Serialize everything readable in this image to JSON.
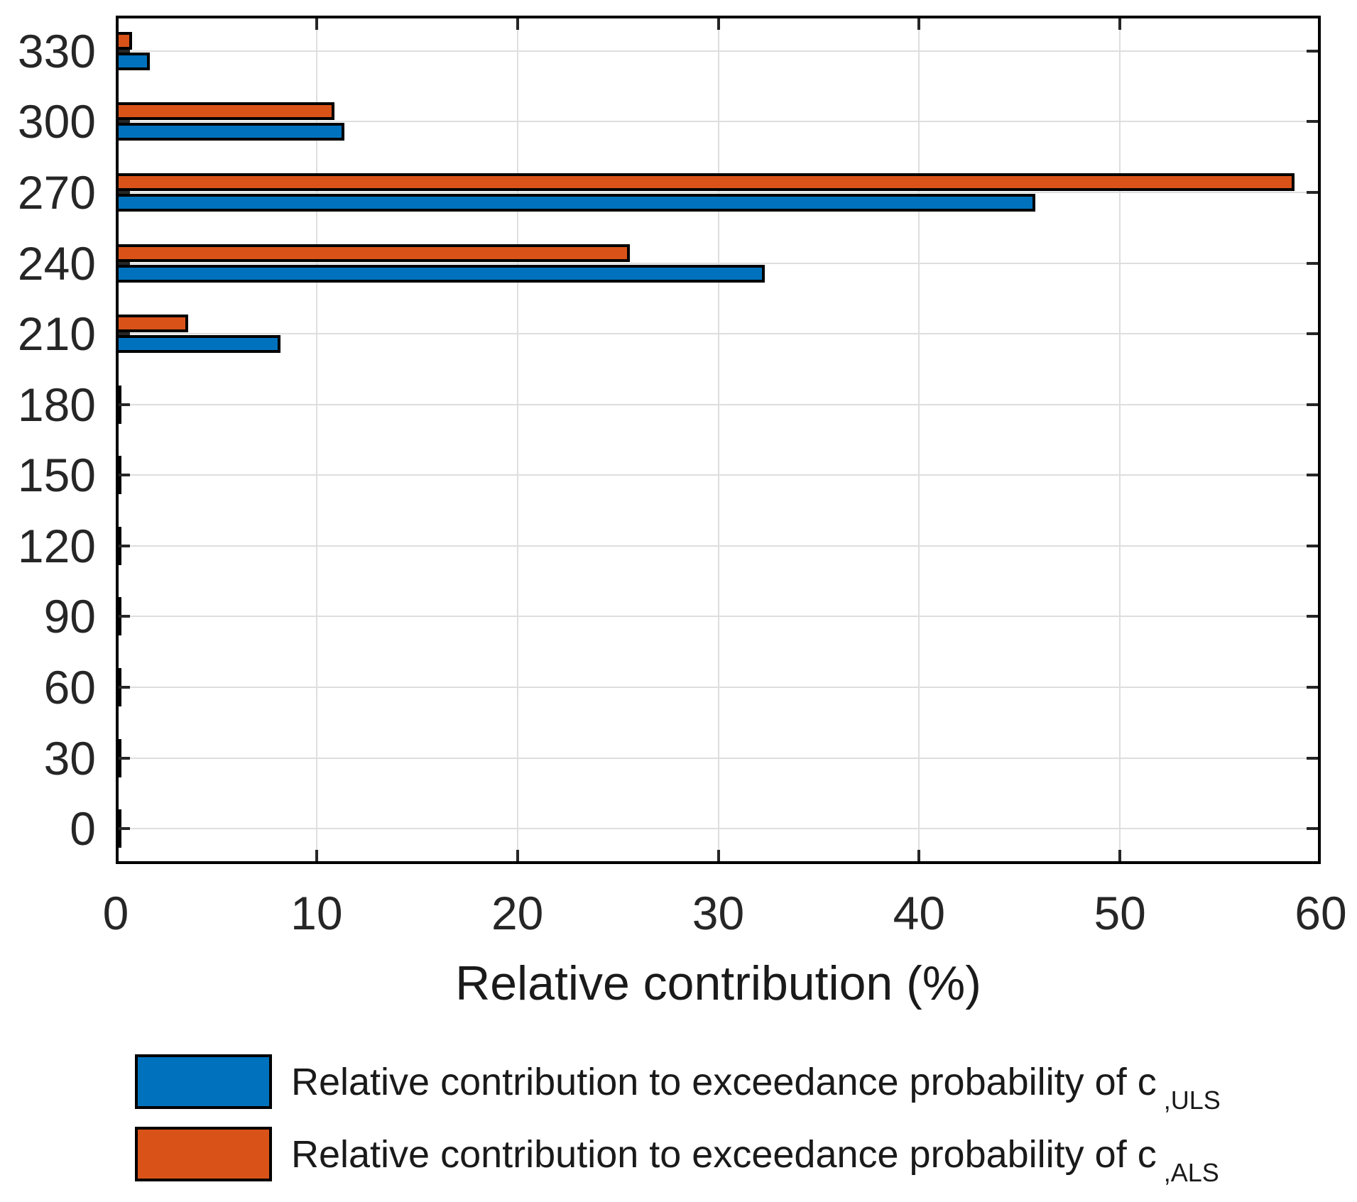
{
  "figure": {
    "background": "#ffffff"
  },
  "chart_data": {
    "type": "bar",
    "orientation": "horizontal-grouped",
    "title": "",
    "xlabel": "Relative contribution (%)",
    "ylabel": "",
    "xlim": [
      0,
      60
    ],
    "x_tick_values": [
      0,
      10,
      20,
      30,
      40,
      50,
      60
    ],
    "x_tick_labels": [
      "0",
      "10",
      "20",
      "30",
      "40",
      "50",
      "60"
    ],
    "categories": [
      "330",
      "300",
      "270",
      "240",
      "210",
      "180",
      "150",
      "120",
      "90",
      "60",
      "30",
      "0"
    ],
    "grid": true,
    "gridline_color": "#dedede",
    "axis_color": "#000000",
    "tick_color": "#262626",
    "legend_position": "below",
    "series": [
      {
        "name": "ULS",
        "legend_main": "Relative contribution to exceedance probability of c",
        "legend_sub": ",ULS",
        "color": "#0072BD",
        "edge_color": "#000000",
        "values": [
          1.7,
          11.4,
          45.8,
          32.3,
          8.2,
          0.3,
          0.05,
          0.05,
          0.05,
          0.05,
          0.25,
          0.25
        ]
      },
      {
        "name": "ALS",
        "legend_main": "Relative contribution to exceedance probability of c",
        "legend_sub": ",ALS",
        "color": "#D95319",
        "edge_color": "#000000",
        "values": [
          0.8,
          10.9,
          58.7,
          25.6,
          3.6,
          0.05,
          0.05,
          0.05,
          0.05,
          0.05,
          0.05,
          0.05
        ]
      }
    ]
  }
}
